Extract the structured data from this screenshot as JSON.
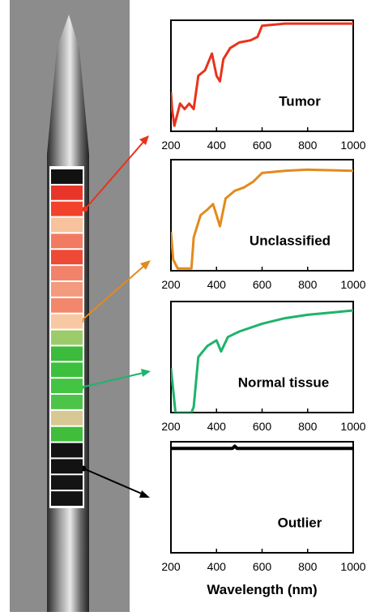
{
  "needle": {
    "segment_colors": [
      "#111111",
      "#e8352a",
      "#f2422c",
      "#f7c29c",
      "#f37a62",
      "#ee4a36",
      "#f3826a",
      "#f49a7e",
      "#f3876c",
      "#f8c8a2",
      "#9ccc6a",
      "#3dbb3c",
      "#3cc03e",
      "#43c443",
      "#4ec34a",
      "#d8c894",
      "#3fbd3b",
      "#121212",
      "#121212",
      "#141414",
      "#141414"
    ]
  },
  "chart_data": [
    {
      "type": "line",
      "annotation": "Tumor",
      "color": "#e8331c",
      "xlim": [
        200,
        1000
      ],
      "xticks": [
        200,
        400,
        600,
        800,
        1000
      ],
      "ylim": [
        0,
        1
      ],
      "x": [
        200,
        205,
        215,
        240,
        260,
        280,
        300,
        320,
        350,
        380,
        400,
        415,
        430,
        460,
        500,
        550,
        580,
        600,
        700,
        800,
        1000
      ],
      "values": [
        0.35,
        0.2,
        0.05,
        0.25,
        0.2,
        0.25,
        0.2,
        0.5,
        0.55,
        0.7,
        0.5,
        0.45,
        0.65,
        0.75,
        0.8,
        0.82,
        0.85,
        0.95,
        0.97,
        0.97,
        0.97
      ]
    },
    {
      "type": "line",
      "annotation": "Unclassified",
      "color": "#e38a1c",
      "xlim": [
        200,
        1000
      ],
      "xticks": [
        200,
        400,
        600,
        800,
        1000
      ],
      "ylim": [
        0,
        1
      ],
      "x": [
        200,
        210,
        230,
        290,
        300,
        330,
        360,
        385,
        400,
        415,
        440,
        480,
        520,
        560,
        600,
        700,
        800,
        1000
      ],
      "values": [
        0.35,
        0.1,
        0.02,
        0.02,
        0.3,
        0.5,
        0.55,
        0.6,
        0.5,
        0.4,
        0.65,
        0.72,
        0.75,
        0.8,
        0.88,
        0.9,
        0.91,
        0.9
      ]
    },
    {
      "type": "line",
      "annotation": "Normal tissue",
      "color": "#1fb36b",
      "xlim": [
        200,
        1000
      ],
      "xticks": [
        200,
        400,
        600,
        800,
        1000
      ],
      "ylim": [
        0,
        1
      ],
      "x": [
        200,
        220,
        290,
        300,
        320,
        360,
        400,
        420,
        450,
        500,
        600,
        700,
        800,
        900,
        1000
      ],
      "values": [
        0.4,
        0.0,
        0.0,
        0.05,
        0.5,
        0.6,
        0.65,
        0.55,
        0.68,
        0.73,
        0.8,
        0.85,
        0.88,
        0.9,
        0.92
      ]
    },
    {
      "type": "line",
      "annotation": "Outlier",
      "color": "#000000",
      "xlim": [
        200,
        1000
      ],
      "xticks": [
        200,
        400,
        600,
        800,
        1000
      ],
      "ylim": [
        0,
        1
      ],
      "xlabel": "Wavelength (nm)",
      "x": [
        200,
        470,
        480,
        490,
        1000
      ],
      "values": [
        0.94,
        0.94,
        0.96,
        0.94,
        0.94
      ]
    }
  ]
}
